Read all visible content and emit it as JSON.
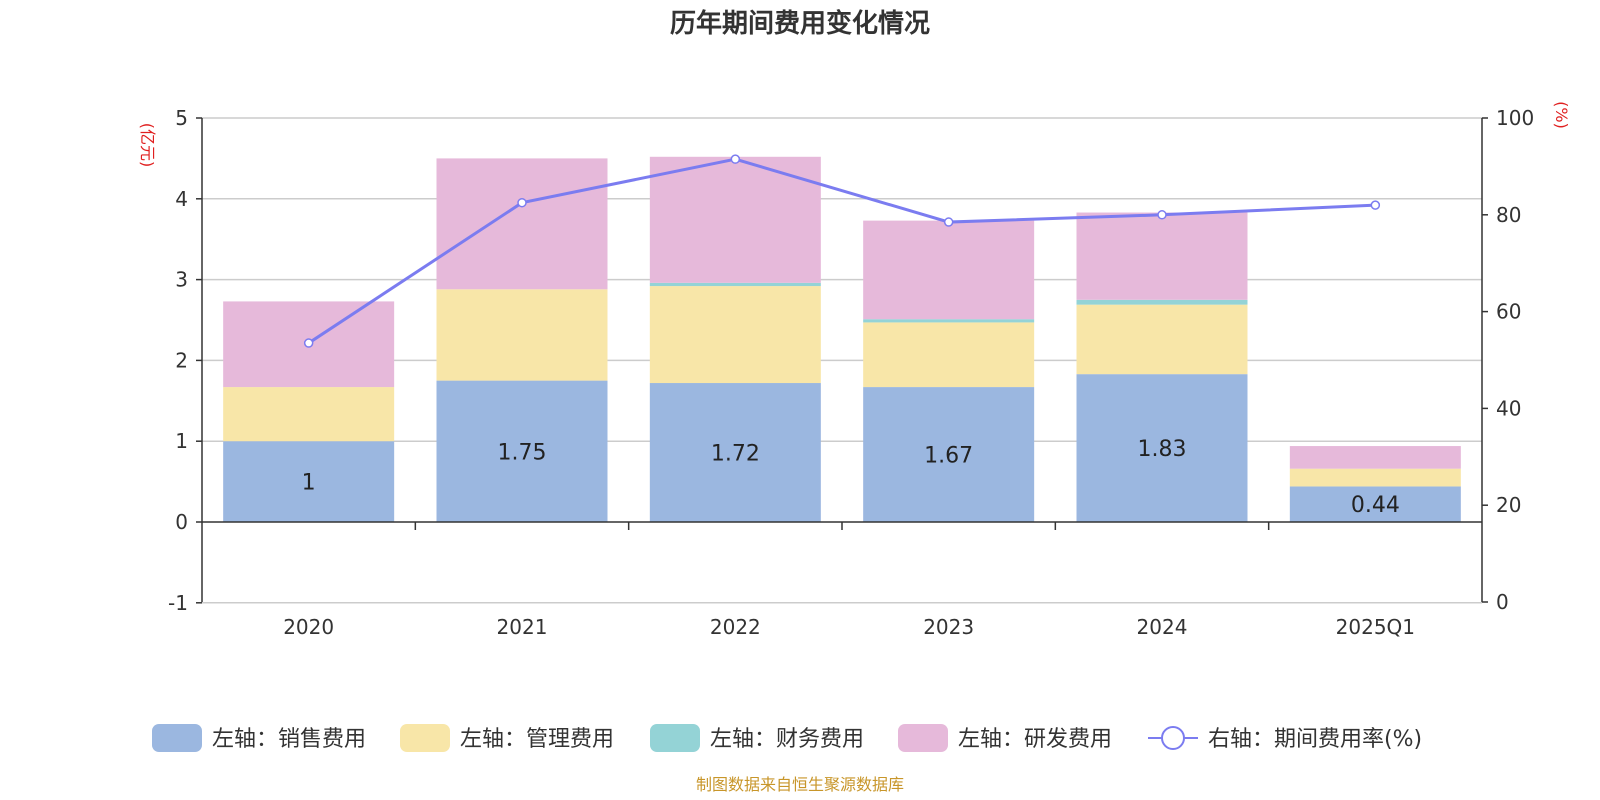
{
  "chart_data": {
    "type": "bar",
    "title": "历年期间费用变化情况",
    "categories": [
      "2020",
      "2021",
      "2022",
      "2023",
      "2024",
      "2025Q1"
    ],
    "left_axis": {
      "unit": "(亿元)",
      "ylim": [
        -1,
        5
      ],
      "ticks": [
        -1,
        0,
        1,
        2,
        3,
        4,
        5
      ]
    },
    "right_axis": {
      "unit": "(%)",
      "ylim": [
        0,
        100
      ],
      "ticks": [
        0,
        20,
        40,
        60,
        80,
        100
      ]
    },
    "series": [
      {
        "name": "销售费用",
        "legend": "左轴：销售费用",
        "axis": "left",
        "color": "#9bb7e0",
        "values": [
          1.0,
          1.75,
          1.72,
          1.67,
          1.83,
          0.44
        ],
        "labels": [
          "1",
          "1.75",
          "1.72",
          "1.67",
          "1.83",
          "0.44"
        ]
      },
      {
        "name": "管理费用",
        "legend": "左轴：管理费用",
        "axis": "left",
        "color": "#f8e6a8",
        "values": [
          0.67,
          1.13,
          1.2,
          0.8,
          0.86,
          0.22
        ]
      },
      {
        "name": "财务费用",
        "legend": "左轴：财务费用",
        "axis": "left",
        "color": "#94d3d6",
        "values": [
          0.0,
          0.0,
          0.04,
          0.04,
          0.06,
          0.0
        ]
      },
      {
        "name": "研发费用",
        "legend": "左轴：研发费用",
        "axis": "left",
        "color": "#e6b9da",
        "values": [
          1.06,
          1.62,
          1.56,
          1.22,
          1.08,
          0.28
        ]
      },
      {
        "name": "期间费用率(%)",
        "legend": "右轴：期间费用率(%)",
        "axis": "right",
        "type": "line",
        "color": "#7b7cf0",
        "values": [
          53.5,
          82.5,
          91.5,
          78.5,
          80.0,
          82.0
        ]
      }
    ],
    "legend_position": "bottom",
    "grid": true
  },
  "source_text": "制图数据来自恒生聚源数据库"
}
